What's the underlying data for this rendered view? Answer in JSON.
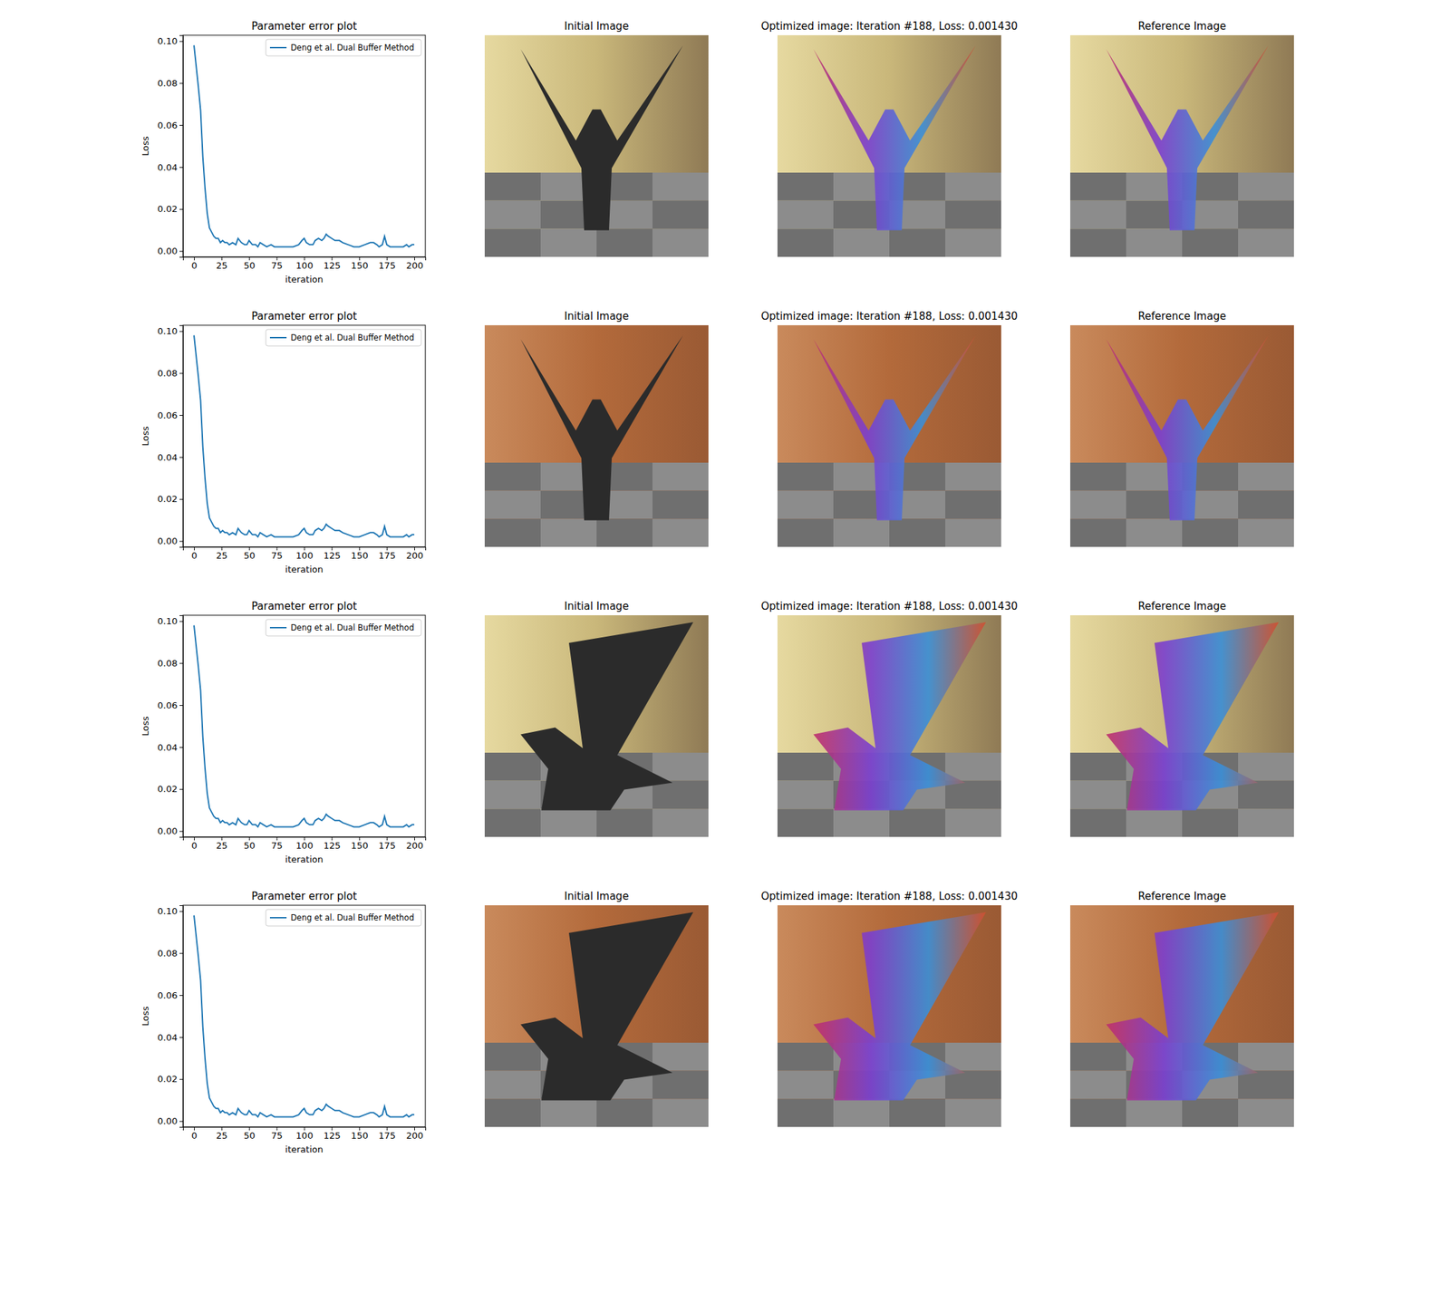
{
  "chart_data": [
    {
      "type": "line",
      "title": "Parameter error plot",
      "x_label": "iteration",
      "y_label": "Loss",
      "x": [
        0,
        2,
        4,
        6,
        8,
        10,
        12,
        14,
        16,
        18,
        20,
        22,
        24,
        26,
        28,
        30,
        32,
        35,
        38,
        40,
        43,
        46,
        48,
        50,
        53,
        56,
        58,
        60,
        63,
        66,
        70,
        73,
        76,
        80,
        85,
        90,
        95,
        98,
        100,
        102,
        105,
        108,
        110,
        113,
        116,
        118,
        120,
        122,
        125,
        128,
        132,
        135,
        140,
        145,
        150,
        155,
        160,
        163,
        166,
        168,
        171,
        173,
        175,
        178,
        182,
        186,
        190,
        193,
        195,
        198,
        200
      ],
      "series": [
        {
          "name": "Deng et al. Dual Buffer Method",
          "color": "#1f77b4",
          "values": [
            0.098,
            0.088,
            0.078,
            0.067,
            0.045,
            0.03,
            0.018,
            0.011,
            0.009,
            0.007,
            0.006,
            0.006,
            0.004,
            0.005,
            0.004,
            0.004,
            0.003,
            0.004,
            0.003,
            0.006,
            0.004,
            0.003,
            0.003,
            0.005,
            0.003,
            0.003,
            0.002,
            0.004,
            0.003,
            0.002,
            0.003,
            0.002,
            0.002,
            0.002,
            0.002,
            0.002,
            0.003,
            0.005,
            0.006,
            0.004,
            0.003,
            0.003,
            0.005,
            0.006,
            0.005,
            0.006,
            0.008,
            0.007,
            0.006,
            0.005,
            0.005,
            0.004,
            0.003,
            0.002,
            0.002,
            0.003,
            0.004,
            0.004,
            0.003,
            0.002,
            0.003,
            0.007,
            0.003,
            0.002,
            0.002,
            0.002,
            0.002,
            0.003,
            0.002,
            0.003,
            0.003
          ]
        }
      ],
      "xlim": [
        -10,
        210
      ],
      "xticks": [
        0,
        25,
        50,
        75,
        100,
        125,
        150,
        175,
        200
      ],
      "ylim": [
        -0.0028,
        0.1028
      ],
      "yticks": [
        {
          "value": 0,
          "label": "0.00"
        },
        {
          "value": 0.02,
          "label": "0.02"
        },
        {
          "value": 0.04,
          "label": "0.04"
        },
        {
          "value": 0.06,
          "label": "0.06"
        },
        {
          "value": 0.08,
          "label": "0.08"
        },
        {
          "value": 0.1,
          "label": "0.10"
        }
      ],
      "legend": "upper right",
      "grid": false
    },
    {
      "type": "line",
      "title": "Parameter error plot",
      "x_label": "iteration",
      "y_label": "Loss",
      "x": [
        0,
        2,
        4,
        6,
        8,
        10,
        12,
        14,
        16,
        18,
        20,
        22,
        24,
        26,
        28,
        30,
        32,
        35,
        38,
        40,
        43,
        46,
        48,
        50,
        53,
        56,
        58,
        60,
        63,
        66,
        70,
        73,
        76,
        80,
        85,
        90,
        95,
        98,
        100,
        102,
        105,
        108,
        110,
        113,
        116,
        118,
        120,
        122,
        125,
        128,
        132,
        135,
        140,
        145,
        150,
        155,
        160,
        163,
        166,
        168,
        171,
        173,
        175,
        178,
        182,
        186,
        190,
        193,
        195,
        198,
        200
      ],
      "series": [
        {
          "name": "Deng et al. Dual Buffer Method",
          "color": "#1f77b4",
          "values": [
            0.098,
            0.088,
            0.078,
            0.067,
            0.045,
            0.03,
            0.018,
            0.011,
            0.009,
            0.007,
            0.006,
            0.006,
            0.004,
            0.005,
            0.004,
            0.004,
            0.003,
            0.004,
            0.003,
            0.006,
            0.004,
            0.003,
            0.003,
            0.005,
            0.003,
            0.003,
            0.002,
            0.004,
            0.003,
            0.002,
            0.003,
            0.002,
            0.002,
            0.002,
            0.002,
            0.002,
            0.003,
            0.005,
            0.006,
            0.004,
            0.003,
            0.003,
            0.005,
            0.006,
            0.005,
            0.006,
            0.008,
            0.007,
            0.006,
            0.005,
            0.005,
            0.004,
            0.003,
            0.002,
            0.002,
            0.003,
            0.004,
            0.004,
            0.003,
            0.002,
            0.003,
            0.007,
            0.003,
            0.002,
            0.002,
            0.002,
            0.002,
            0.003,
            0.002,
            0.003,
            0.003
          ]
        }
      ],
      "xlim": [
        -10,
        210
      ],
      "xticks": [
        0,
        25,
        50,
        75,
        100,
        125,
        150,
        175,
        200
      ],
      "ylim": [
        -0.0028,
        0.1028
      ],
      "yticks": [
        {
          "value": 0,
          "label": "0.00"
        },
        {
          "value": 0.02,
          "label": "0.02"
        },
        {
          "value": 0.04,
          "label": "0.04"
        },
        {
          "value": 0.06,
          "label": "0.06"
        },
        {
          "value": 0.08,
          "label": "0.08"
        },
        {
          "value": 0.1,
          "label": "0.10"
        }
      ],
      "legend": "upper right",
      "grid": false
    },
    {
      "type": "line",
      "title": "Parameter error plot",
      "x_label": "iteration",
      "y_label": "Loss",
      "x": [
        0,
        2,
        4,
        6,
        8,
        10,
        12,
        14,
        16,
        18,
        20,
        22,
        24,
        26,
        28,
        30,
        32,
        35,
        38,
        40,
        43,
        46,
        48,
        50,
        53,
        56,
        58,
        60,
        63,
        66,
        70,
        73,
        76,
        80,
        85,
        90,
        95,
        98,
        100,
        102,
        105,
        108,
        110,
        113,
        116,
        118,
        120,
        122,
        125,
        128,
        132,
        135,
        140,
        145,
        150,
        155,
        160,
        163,
        166,
        168,
        171,
        173,
        175,
        178,
        182,
        186,
        190,
        193,
        195,
        198,
        200
      ],
      "series": [
        {
          "name": "Deng et al. Dual Buffer Method",
          "color": "#1f77b4",
          "values": [
            0.098,
            0.088,
            0.078,
            0.067,
            0.045,
            0.03,
            0.018,
            0.011,
            0.009,
            0.007,
            0.006,
            0.006,
            0.004,
            0.005,
            0.004,
            0.004,
            0.003,
            0.004,
            0.003,
            0.006,
            0.004,
            0.003,
            0.003,
            0.005,
            0.003,
            0.003,
            0.002,
            0.004,
            0.003,
            0.002,
            0.003,
            0.002,
            0.002,
            0.002,
            0.002,
            0.002,
            0.003,
            0.005,
            0.006,
            0.004,
            0.003,
            0.003,
            0.005,
            0.006,
            0.005,
            0.006,
            0.008,
            0.007,
            0.006,
            0.005,
            0.005,
            0.004,
            0.003,
            0.002,
            0.002,
            0.003,
            0.004,
            0.004,
            0.003,
            0.002,
            0.003,
            0.007,
            0.003,
            0.002,
            0.002,
            0.002,
            0.002,
            0.003,
            0.002,
            0.003,
            0.003
          ]
        }
      ],
      "xlim": [
        -10,
        210
      ],
      "xticks": [
        0,
        25,
        50,
        75,
        100,
        125,
        150,
        175,
        200
      ],
      "ylim": [
        -0.0028,
        0.1028
      ],
      "yticks": [
        {
          "value": 0,
          "label": "0.00"
        },
        {
          "value": 0.02,
          "label": "0.02"
        },
        {
          "value": 0.04,
          "label": "0.04"
        },
        {
          "value": 0.06,
          "label": "0.06"
        },
        {
          "value": 0.08,
          "label": "0.08"
        },
        {
          "value": 0.1,
          "label": "0.10"
        }
      ],
      "legend": "upper right",
      "grid": false
    },
    {
      "type": "line",
      "title": "Parameter error plot",
      "x_label": "iteration",
      "y_label": "Loss",
      "x": [
        0,
        2,
        4,
        6,
        8,
        10,
        12,
        14,
        16,
        18,
        20,
        22,
        24,
        26,
        28,
        30,
        32,
        35,
        38,
        40,
        43,
        46,
        48,
        50,
        53,
        56,
        58,
        60,
        63,
        66,
        70,
        73,
        76,
        80,
        85,
        90,
        95,
        98,
        100,
        102,
        105,
        108,
        110,
        113,
        116,
        118,
        120,
        122,
        125,
        128,
        132,
        135,
        140,
        145,
        150,
        155,
        160,
        163,
        166,
        168,
        171,
        173,
        175,
        178,
        182,
        186,
        190,
        193,
        195,
        198,
        200
      ],
      "series": [
        {
          "name": "Deng et al. Dual Buffer Method",
          "color": "#1f77b4",
          "values": [
            0.098,
            0.088,
            0.078,
            0.067,
            0.045,
            0.03,
            0.018,
            0.011,
            0.009,
            0.007,
            0.006,
            0.006,
            0.004,
            0.005,
            0.004,
            0.004,
            0.003,
            0.004,
            0.003,
            0.006,
            0.004,
            0.003,
            0.003,
            0.005,
            0.003,
            0.003,
            0.002,
            0.004,
            0.003,
            0.002,
            0.003,
            0.002,
            0.002,
            0.002,
            0.002,
            0.002,
            0.003,
            0.005,
            0.006,
            0.004,
            0.003,
            0.003,
            0.005,
            0.006,
            0.005,
            0.006,
            0.008,
            0.007,
            0.006,
            0.005,
            0.005,
            0.004,
            0.003,
            0.002,
            0.002,
            0.003,
            0.004,
            0.004,
            0.003,
            0.002,
            0.003,
            0.007,
            0.003,
            0.002,
            0.002,
            0.002,
            0.002,
            0.003,
            0.002,
            0.003,
            0.003
          ]
        }
      ],
      "xlim": [
        -10,
        210
      ],
      "xticks": [
        0,
        25,
        50,
        75,
        100,
        125,
        150,
        175,
        200
      ],
      "ylim": [
        -0.0028,
        0.1028
      ],
      "yticks": [
        {
          "value": 0,
          "label": "0.00"
        },
        {
          "value": 0.02,
          "label": "0.02"
        },
        {
          "value": 0.04,
          "label": "0.04"
        },
        {
          "value": 0.06,
          "label": "0.06"
        },
        {
          "value": 0.08,
          "label": "0.08"
        },
        {
          "value": 0.1,
          "label": "0.10"
        }
      ],
      "legend": "upper right",
      "grid": false
    }
  ],
  "image_rows": [
    {
      "titles": [
        "Initial Image",
        "Optimized image: Iteration #188, Loss: 0.001430",
        "Reference Image"
      ]
    },
    {
      "titles": [
        "Initial Image",
        "Optimized image: Iteration #188, Loss: 0.001430",
        "Reference Image"
      ]
    },
    {
      "titles": [
        "Initial Image",
        "Optimized image: Iteration #188, Loss: 0.001430",
        "Reference Image"
      ]
    },
    {
      "titles": [
        "Initial Image",
        "Optimized image: Iteration #188, Loss: 0.001430",
        "Reference Image"
      ]
    }
  ]
}
